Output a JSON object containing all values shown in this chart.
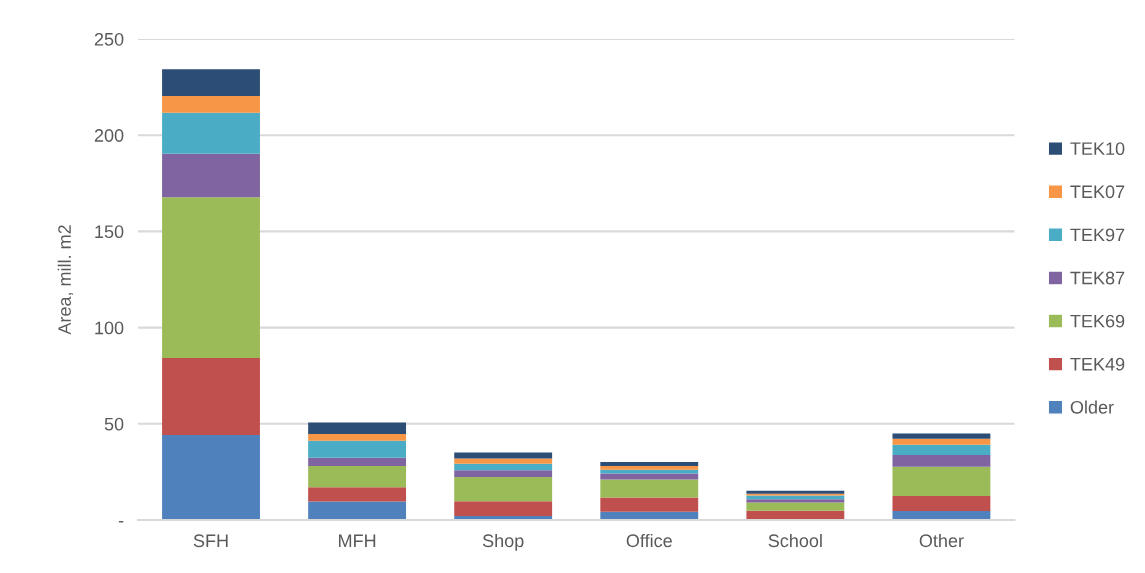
{
  "chart_data": {
    "type": "bar",
    "stacked": true,
    "ylabel": "Area, mill. m2",
    "categories": [
      "SFH",
      "MFH",
      "Shop",
      "Office",
      "School",
      "Other"
    ],
    "series": [
      {
        "name": "Older",
        "color": "#4f81bd",
        "values": [
          44.2,
          9.6,
          2.1,
          4.3,
          null,
          4.7
        ]
      },
      {
        "name": "TEK49",
        "color": "#c0504d",
        "values": [
          40.0,
          7.4,
          7.7,
          7.4,
          4.8,
          7.8
        ]
      },
      {
        "name": "TEK69",
        "color": "#9bbb59",
        "values": [
          83.5,
          11.0,
          12.5,
          9.3,
          4.3,
          15.2
        ]
      },
      {
        "name": "TEK87",
        "color": "#8064a2",
        "values": [
          22.7,
          4.3,
          3.5,
          3.2,
          1.7,
          6.1
        ]
      },
      {
        "name": "TEK97",
        "color": "#4bacc6",
        "values": [
          21.3,
          8.9,
          3.4,
          1.9,
          1.9,
          5.3
        ]
      },
      {
        "name": "TEK07",
        "color": "#f79646",
        "values": [
          8.6,
          3.5,
          2.8,
          1.9,
          1.0,
          3.1
        ]
      },
      {
        "name": "TEK10",
        "color": "#2c4d75",
        "values": [
          13.9,
          6.0,
          3.1,
          2.1,
          1.5,
          2.7
        ]
      }
    ],
    "ylim": [
      0,
      250
    ],
    "yticks": [
      {
        "value": 0,
        "label": "-"
      },
      50,
      100,
      150,
      200,
      250
    ],
    "grid": "y",
    "legend": "right"
  }
}
